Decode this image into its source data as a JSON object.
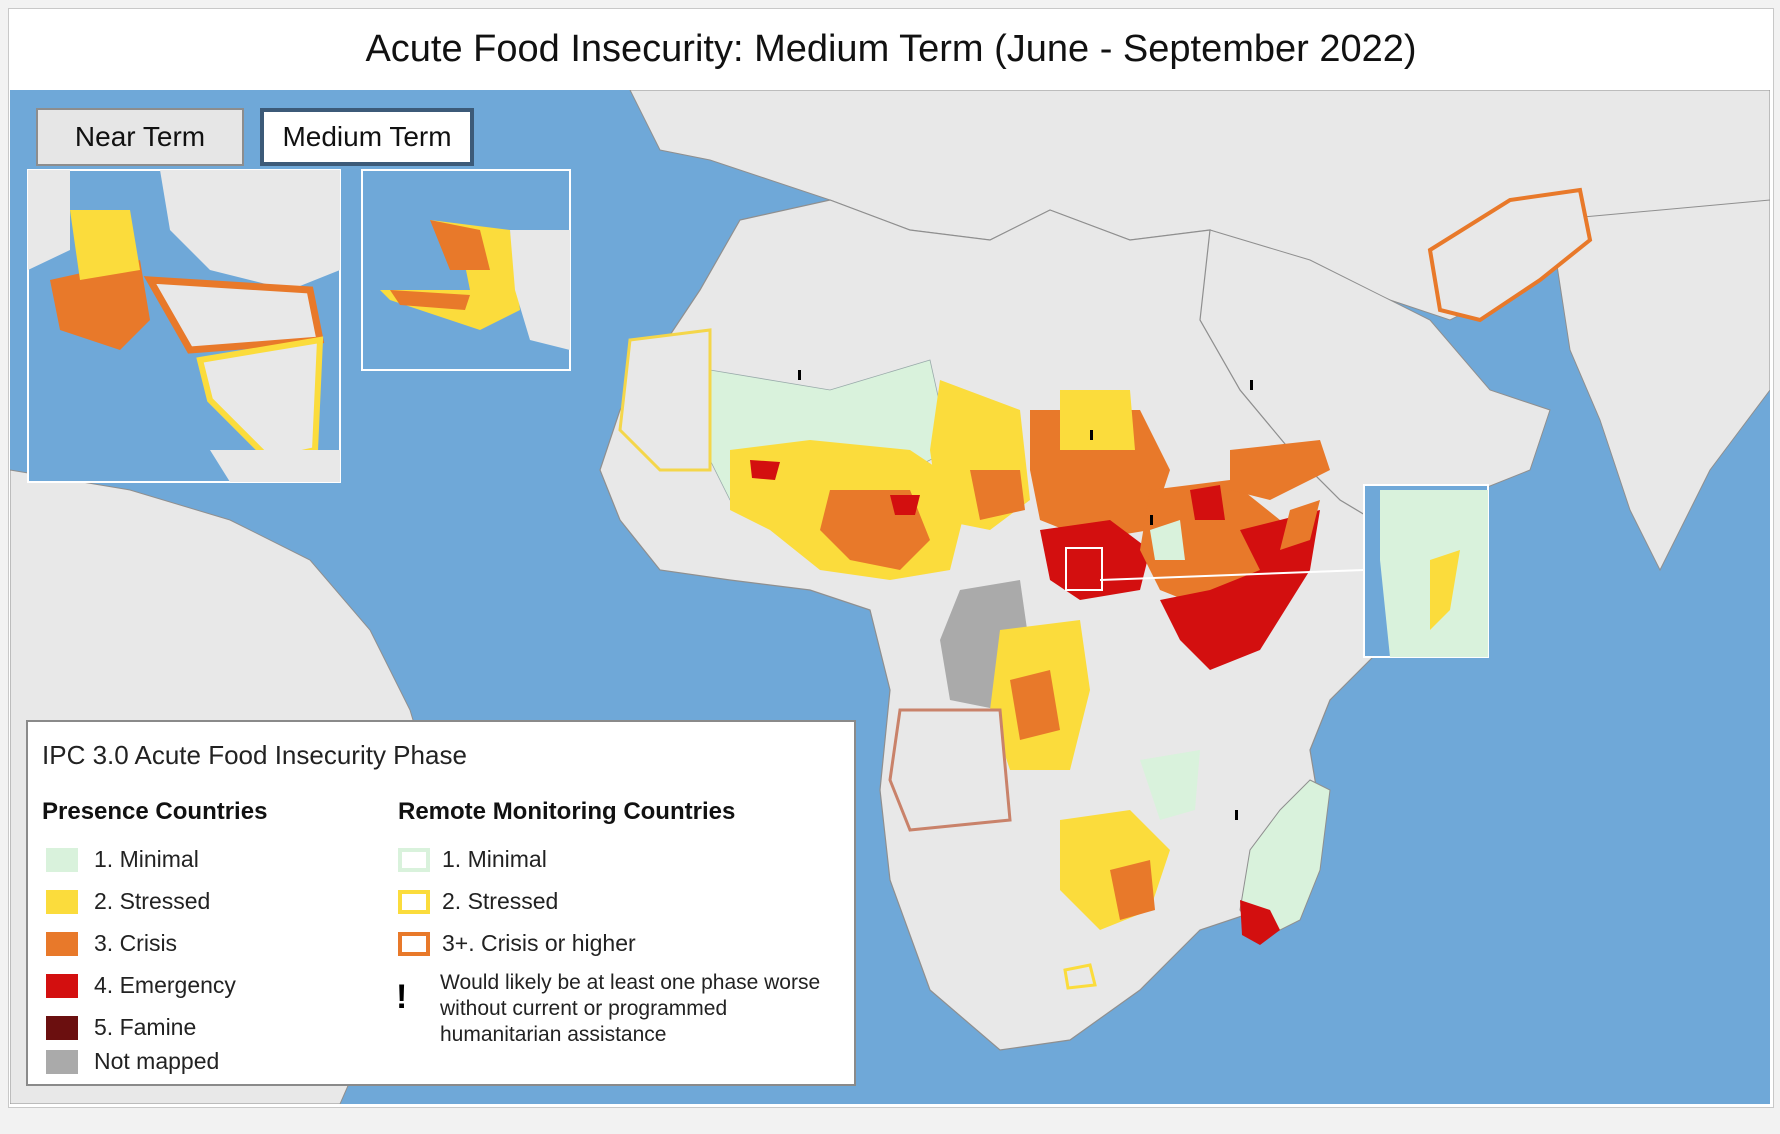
{
  "title": "Acute Food Insecurity: Medium Term (June - September 2022)",
  "tabs": {
    "near": "Near Term",
    "medium": "Medium Term",
    "selected": "Medium Term"
  },
  "colors": {
    "ocean": "#6fa8d8",
    "land": "#e8e8e8",
    "minimal": "#d9f2dc",
    "stressed": "#fbdc3c",
    "crisis": "#e8792a",
    "emergency": "#d30f0f",
    "famine": "#6b0f0f",
    "not_mapped": "#aaaaaa"
  },
  "legend": {
    "title": "IPC 3.0 Acute Food Insecurity Phase",
    "presence_heading": "Presence Countries",
    "presence_items": [
      "1. Minimal",
      "2. Stressed",
      "3. Crisis",
      "4. Emergency",
      "5. Famine",
      "Not mapped"
    ],
    "remote_heading": "Remote Monitoring Countries",
    "remote_items": [
      "1. Minimal",
      "2. Stressed",
      "3+. Crisis or higher"
    ],
    "assistance_symbol": "!",
    "assistance_note": "Would likely be at least one phase worse without current or programmed humanitarian assistance"
  }
}
